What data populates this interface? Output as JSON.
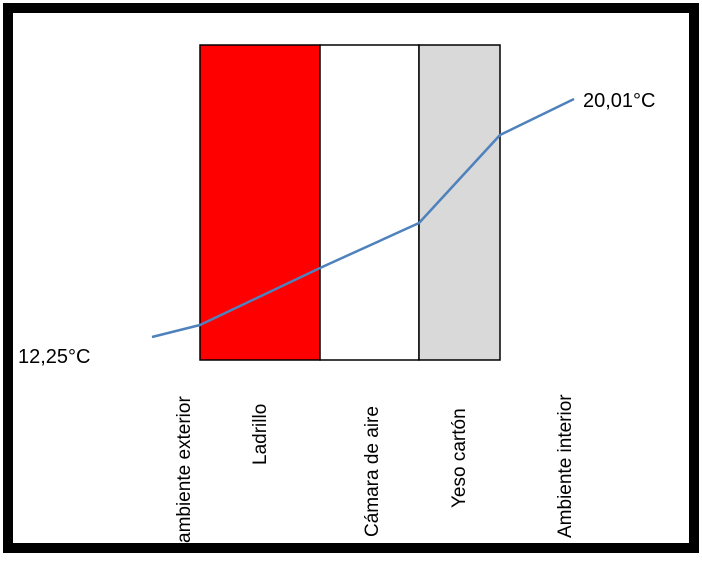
{
  "colors": {
    "frame": "#000000",
    "brick": "#ff0000",
    "air_gap": "#ffffff",
    "gypsum": "#d9d9d9",
    "profile_line": "#4f81bd"
  },
  "temperatures": {
    "exterior": "12,25°C",
    "interior": "20,01°C"
  },
  "layers": [
    {
      "label": "ambiente exterior"
    },
    {
      "label": "Ladrillo"
    },
    {
      "label": "Cámara de aire"
    },
    {
      "label": "Yeso cartón"
    },
    {
      "label": "Ambiente interior"
    }
  ]
}
